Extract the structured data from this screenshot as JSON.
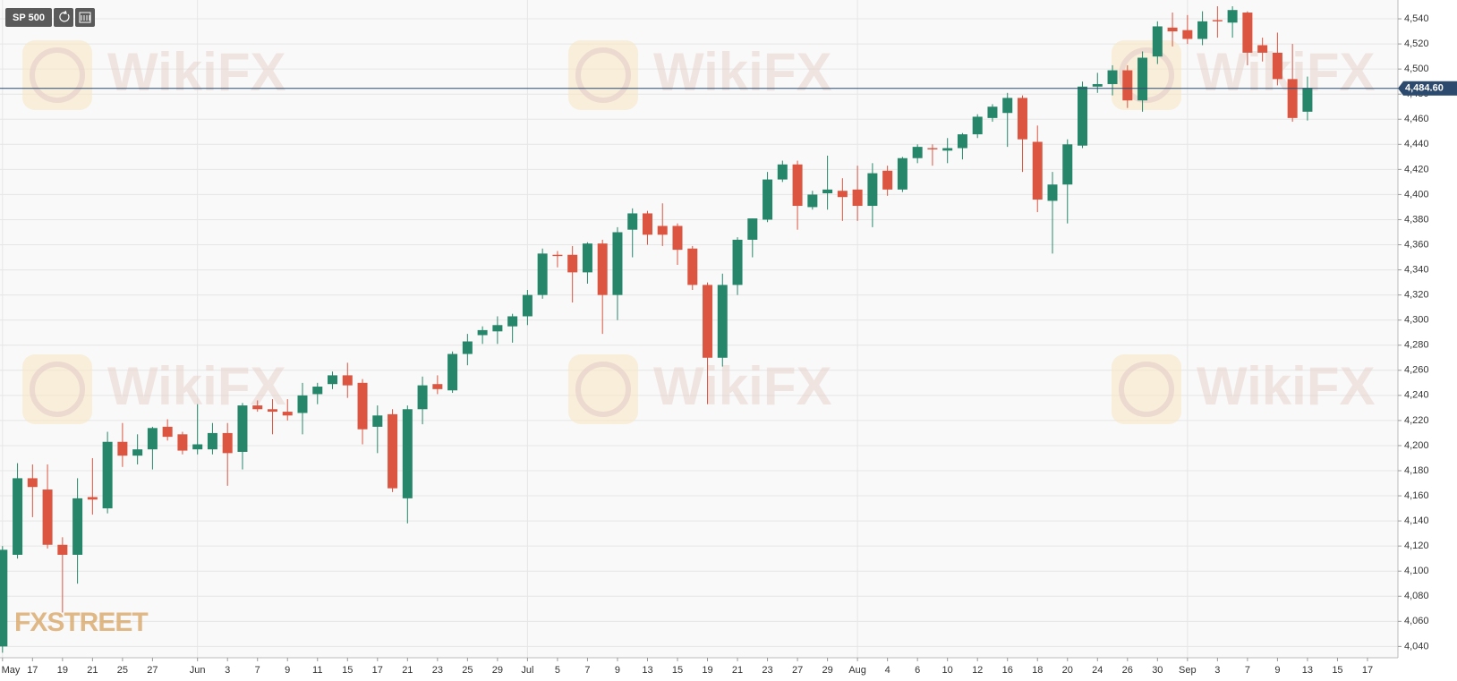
{
  "chart_data": {
    "type": "candlestick",
    "symbol": "SP 500",
    "watermark": "WikiFX",
    "brand": "FXSTREET",
    "categories": [
      "May",
      null,
      "17",
      null,
      "19",
      null,
      "21",
      null,
      "25",
      null,
      "27",
      null,
      null,
      "Jun",
      null,
      "3",
      null,
      "7",
      null,
      "9",
      null,
      "11",
      null,
      "15",
      null,
      "17",
      null,
      "21",
      null,
      "23",
      null,
      "25",
      null,
      "29",
      null,
      "Jul",
      null,
      "5",
      null,
      "7",
      null,
      "9",
      null,
      "13",
      null,
      "15",
      null,
      "19",
      null,
      "21",
      null,
      "23",
      null,
      "27",
      null,
      "29",
      null,
      "Aug",
      null,
      "4",
      null,
      "6",
      null,
      "10",
      null,
      "12",
      null,
      "16",
      null,
      "18",
      null,
      "20",
      null,
      "24",
      null,
      "26",
      null,
      "30",
      null,
      "Sep",
      null,
      "3",
      null,
      "7",
      null,
      "9",
      null,
      "13",
      null,
      "15",
      null,
      "17"
    ],
    "open": [
      4040,
      4113,
      4174,
      4165,
      4121,
      4113,
      4159,
      4150,
      4203,
      4192,
      4197,
      4215,
      4209,
      4197,
      4197,
      4210,
      4195,
      4232,
      4229,
      4227,
      4226,
      4241,
      4249,
      4256,
      4250,
      4215,
      4225,
      4158,
      4229,
      4249,
      4244,
      4273,
      4288,
      4291,
      4295,
      4303,
      4320,
      4352,
      4352,
      4338,
      4361,
      4320,
      4372,
      4385,
      4375,
      4375,
      4357,
      4328,
      4270,
      4328,
      4364,
      4380,
      4412,
      4424,
      4390,
      4401,
      4403,
      4404,
      4391,
      4419,
      4404,
      4429,
      4437,
      4435,
      4437,
      4448,
      4461,
      4465,
      4477,
      4442,
      4395,
      4408,
      4439,
      4486,
      4488,
      4499,
      4475,
      4510,
      4533,
      4531,
      4524,
      4539,
      4537,
      4545,
      4519,
      4513,
      4492,
      4466,
      null,
      null,
      null,
      null
    ],
    "high": [
      4120,
      4186,
      4185,
      4185,
      4127,
      4174,
      4190,
      4211,
      4218,
      4209,
      4215,
      4221,
      4211,
      4233,
      4218,
      4218,
      4234,
      4236,
      4237,
      4237,
      4250,
      4250,
      4259,
      4266,
      4253,
      4232,
      4229,
      4232,
      4255,
      4256,
      4275,
      4289,
      4295,
      4303,
      4305,
      4324,
      4357,
      4355,
      4359,
      4362,
      4364,
      4374,
      4389,
      4387,
      4393,
      4377,
      4359,
      4330,
      4337,
      4366,
      4381,
      4418,
      4427,
      4427,
      4403,
      4431,
      4413,
      4423,
      4425,
      4423,
      4430,
      4440,
      4440,
      4445,
      4449,
      4464,
      4472,
      4481,
      4479,
      4455,
      4418,
      4444,
      4490,
      4497,
      4503,
      4503,
      4514,
      4538,
      4545,
      4543,
      4546,
      4550,
      4550,
      4546,
      4525,
      4529,
      4520,
      4494,
      null,
      null,
      null,
      null
    ],
    "low": [
      4035,
      4110,
      4143,
      4118,
      4067,
      4090,
      4145,
      4146,
      4183,
      4185,
      4181,
      4204,
      4193,
      4193,
      4193,
      4168,
      4181,
      4227,
      4209,
      4220,
      4209,
      4233,
      4245,
      4238,
      4201,
      4194,
      4163,
      4138,
      4217,
      4241,
      4242,
      4264,
      4281,
      4281,
      4282,
      4296,
      4317,
      4342,
      4314,
      4329,
      4289,
      4300,
      4350,
      4360,
      4359,
      4344,
      4324,
      4233,
      4263,
      4320,
      4350,
      4378,
      4410,
      4372,
      4388,
      4388,
      4379,
      4379,
      4374,
      4399,
      4402,
      4425,
      4423,
      4425,
      4428,
      4445,
      4458,
      4438,
      4418,
      4386,
      4353,
      4377,
      4437,
      4481,
      4479,
      4469,
      4466,
      4504,
      4518,
      4520,
      4519,
      4525,
      4525,
      4503,
      4506,
      4487,
      4458,
      4459,
      null,
      null,
      null,
      null
    ],
    "close": [
      4117,
      4174,
      4167,
      4121,
      4113,
      4158,
      4157,
      4203,
      4192,
      4197,
      4214,
      4207,
      4196,
      4201,
      4210,
      4194,
      4232,
      4229,
      4227,
      4224,
      4240,
      4247,
      4256,
      4248,
      4213,
      4224,
      4166,
      4229,
      4248,
      4245,
      4273,
      4283,
      4292,
      4296,
      4303,
      4320,
      4353,
      4351,
      4338,
      4361,
      4320,
      4370,
      4385,
      4368,
      4368,
      4356,
      4328,
      4270,
      4328,
      4364,
      4381,
      4412,
      4424,
      4391,
      4400,
      4404,
      4398,
      4391,
      4417,
      4404,
      4429,
      4438,
      4436,
      4437,
      4448,
      4462,
      4470,
      4477,
      4444,
      4396,
      4408,
      4440,
      4486,
      4488,
      4499,
      4475,
      4509,
      4534,
      4530,
      4524,
      4538,
      4538,
      4547,
      4513,
      4513,
      4492,
      4461,
      4485,
      null,
      null,
      null,
      null
    ],
    "up_color": "#26866a",
    "down_color": "#db5541",
    "ylim": [
      4031,
      4555
    ],
    "yticks": [
      {
        "value": 4040,
        "label": "4,040"
      },
      {
        "value": 4060,
        "label": "4,060"
      },
      {
        "value": 4080,
        "label": "4,080"
      },
      {
        "value": 4100,
        "label": "4,100"
      },
      {
        "value": 4120,
        "label": "4,120"
      },
      {
        "value": 4140,
        "label": "4,140"
      },
      {
        "value": 4160,
        "label": "4,160"
      },
      {
        "value": 4180,
        "label": "4,180"
      },
      {
        "value": 4200,
        "label": "4,200"
      },
      {
        "value": 4220,
        "label": "4,220"
      },
      {
        "value": 4240,
        "label": "4,240"
      },
      {
        "value": 4260,
        "label": "4,260"
      },
      {
        "value": 4280,
        "label": "4,280"
      },
      {
        "value": 4300,
        "label": "4,300"
      },
      {
        "value": 4320,
        "label": "4,320"
      },
      {
        "value": 4340,
        "label": "4,340"
      },
      {
        "value": 4360,
        "label": "4,360"
      },
      {
        "value": 4380,
        "label": "4,380"
      },
      {
        "value": 4400,
        "label": "4,400"
      },
      {
        "value": 4420,
        "label": "4,420"
      },
      {
        "value": 4440,
        "label": "4,440"
      },
      {
        "value": 4460,
        "label": "4,460"
      },
      {
        "value": 4480,
        "label": "4,480"
      },
      {
        "value": 4500,
        "label": "4,500"
      },
      {
        "value": 4520,
        "label": "4,520"
      },
      {
        "value": 4540,
        "label": "4,540"
      }
    ],
    "grid": true,
    "last_price": {
      "value": 4484.6,
      "label": "4,484.60"
    }
  }
}
